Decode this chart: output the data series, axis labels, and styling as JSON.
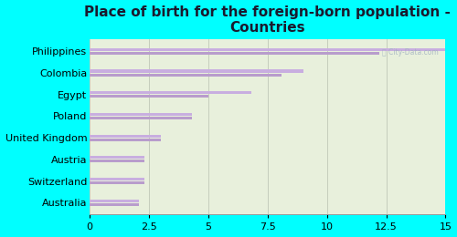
{
  "title": "Place of birth for the foreign-born population -\nCountries",
  "categories": [
    "Philippines",
    "Colombia",
    "Egypt",
    "Poland",
    "United Kingdom",
    "Austria",
    "Switzerland",
    "Australia"
  ],
  "values1": [
    15.0,
    9.0,
    6.8,
    4.3,
    3.0,
    2.3,
    2.3,
    2.1
  ],
  "values2": [
    12.2,
    8.1,
    5.0,
    4.3,
    3.0,
    2.3,
    2.3,
    2.1
  ],
  "bar_color1": "#c8aee0",
  "bar_color2": "#b89ccc",
  "background_color": "#00ffff",
  "plot_bg_color": "#e8f0dc",
  "xlim": [
    0,
    15
  ],
  "xticks": [
    0,
    2.5,
    5,
    7.5,
    10,
    12.5,
    15
  ],
  "title_fontsize": 11,
  "tick_fontsize": 8,
  "label_fontsize": 8
}
